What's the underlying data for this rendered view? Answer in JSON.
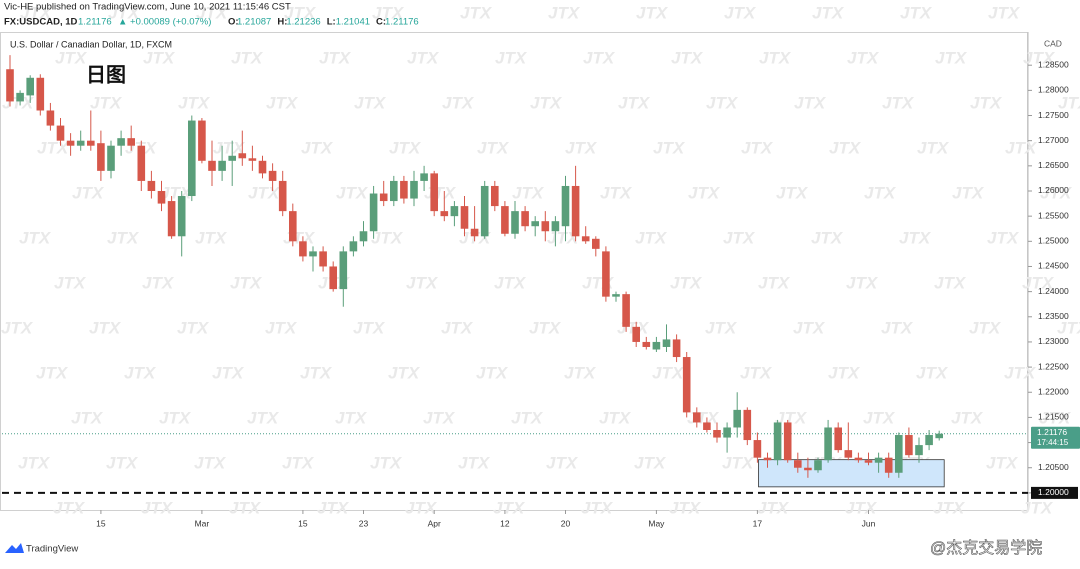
{
  "header": {
    "publisher": "Vic-HE published on TradingView.com, June 10, 2021 11:15:46 CST",
    "symbol": "FX:USDCAD, 1D",
    "price": "1.21176",
    "change": "▲ +0.00089 (+0.07%)",
    "ohlc": [
      {
        "key": "O:",
        "value": "1.21087"
      },
      {
        "key": "H:",
        "value": "1.21236"
      },
      {
        "key": "L:",
        "value": "1.21041"
      },
      {
        "key": "C:",
        "value": "1.21176"
      }
    ]
  },
  "watermark": "JTX",
  "footer": {
    "brand": "TradingView",
    "credit": "@杰克交易学院"
  },
  "chart_data": {
    "type": "candlestick",
    "title": "U.S. Dollar / Canadian Dollar, 1D, FXCM",
    "annotation": "日图",
    "currency": "CAD",
    "up_color": "#5a9e7a",
    "down_color": "#d6574a",
    "categories": [
      null,
      null,
      null,
      null,
      null,
      null,
      null,
      null,
      null,
      "15",
      null,
      null,
      null,
      null,
      null,
      null,
      null,
      null,
      null,
      "Mar",
      null,
      null,
      null,
      null,
      null,
      null,
      null,
      null,
      null,
      "15",
      null,
      null,
      null,
      null,
      null,
      "23",
      null,
      null,
      null,
      null,
      null,
      null,
      "Apr",
      null,
      null,
      null,
      null,
      null,
      null,
      "12",
      null,
      null,
      null,
      null,
      null,
      "20",
      null,
      null,
      null,
      null,
      null,
      null,
      null,
      null,
      "May",
      null,
      null,
      null,
      null,
      null,
      null,
      null,
      null,
      null,
      "17",
      null,
      null,
      null,
      null,
      null,
      null,
      null,
      null,
      null,
      null,
      "Jun",
      null,
      null,
      null,
      null,
      null,
      null,
      null
    ],
    "open": [
      1.2842,
      1.2778,
      1.279,
      1.2825,
      1.276,
      1.273,
      1.27,
      1.269,
      1.27,
      1.2695,
      1.264,
      1.269,
      1.2705,
      1.269,
      1.262,
      1.26,
      1.258,
      1.251,
      1.259,
      1.274,
      1.266,
      1.264,
      1.266,
      1.2675,
      1.2665,
      1.266,
      1.264,
      1.262,
      1.256,
      1.25,
      1.247,
      1.248,
      1.245,
      1.2405,
      1.248,
      1.25,
      1.252,
      1.2595,
      1.258,
      1.262,
      1.2585,
      1.262,
      1.2635,
      1.256,
      1.255,
      1.257,
      1.2525,
      1.251,
      1.261,
      1.257,
      1.2515,
      1.256,
      1.253,
      1.254,
      1.252,
      1.253,
      1.261,
      1.251,
      1.2505,
      1.248,
      1.239,
      1.2395,
      1.233,
      1.23,
      1.2285,
      1.229,
      1.2305,
      1.227,
      1.216,
      1.214,
      1.2125,
      1.211,
      1.213,
      1.2165,
      1.2105,
      1.207,
      1.2065,
      1.214,
      1.2065,
      1.205,
      1.2045,
      1.2065,
      1.213,
      1.2085,
      1.207,
      1.2065,
      1.206,
      1.207,
      1.204,
      1.2115,
      1.2075,
      1.2095,
      1.21087
    ],
    "high": [
      1.287,
      1.28,
      1.283,
      1.2832,
      1.2775,
      1.2745,
      1.2715,
      1.272,
      1.276,
      1.272,
      1.27,
      1.272,
      1.273,
      1.27,
      1.264,
      1.262,
      1.259,
      1.26,
      1.275,
      1.2745,
      1.27,
      1.269,
      1.27,
      1.272,
      1.269,
      1.267,
      1.2655,
      1.264,
      1.2575,
      1.251,
      1.249,
      1.249,
      1.246,
      1.249,
      1.251,
      1.254,
      1.261,
      1.262,
      1.263,
      1.263,
      1.264,
      1.265,
      1.264,
      1.26,
      1.258,
      1.259,
      1.257,
      1.262,
      1.262,
      1.258,
      1.258,
      1.257,
      1.255,
      1.256,
      1.255,
      1.263,
      1.265,
      1.253,
      1.251,
      1.249,
      1.24,
      1.24,
      1.234,
      1.231,
      1.231,
      1.2335,
      1.2315,
      1.228,
      1.217,
      1.215,
      1.214,
      1.214,
      1.22,
      1.217,
      1.212,
      1.208,
      1.2145,
      1.2145,
      1.208,
      1.207,
      1.207,
      1.2145,
      1.214,
      1.214,
      1.208,
      1.208,
      1.208,
      1.208,
      1.212,
      1.213,
      1.211,
      1.2125,
      1.21236
    ],
    "low": [
      1.2768,
      1.277,
      1.2775,
      1.275,
      1.272,
      1.269,
      1.267,
      1.268,
      1.268,
      1.262,
      1.2625,
      1.267,
      1.268,
      1.26,
      1.2585,
      1.256,
      1.2505,
      1.247,
      1.258,
      1.2655,
      1.261,
      1.262,
      1.261,
      1.265,
      1.264,
      1.2625,
      1.26,
      1.255,
      1.249,
      1.246,
      1.244,
      1.244,
      1.24,
      1.237,
      1.247,
      1.249,
      1.2505,
      1.257,
      1.257,
      1.2575,
      1.257,
      1.26,
      1.255,
      1.254,
      1.253,
      1.251,
      1.25,
      1.2505,
      1.256,
      1.251,
      1.2505,
      1.252,
      1.251,
      1.25,
      1.249,
      1.25,
      1.25,
      1.2495,
      1.247,
      1.238,
      1.238,
      1.232,
      1.229,
      1.2285,
      1.228,
      1.228,
      1.226,
      1.215,
      1.213,
      1.212,
      1.21,
      1.208,
      1.211,
      1.2095,
      1.206,
      1.205,
      1.2055,
      1.206,
      1.204,
      1.203,
      1.204,
      1.206,
      1.208,
      1.2065,
      1.206,
      1.2055,
      1.204,
      1.203,
      1.203,
      1.207,
      1.206,
      1.2085,
      1.21041
    ],
    "close": [
      1.2778,
      1.2795,
      1.2825,
      1.276,
      1.273,
      1.27,
      1.269,
      1.27,
      1.269,
      1.264,
      1.269,
      1.2705,
      1.269,
      1.262,
      1.26,
      1.2575,
      1.251,
      1.259,
      1.274,
      1.266,
      1.264,
      1.266,
      1.267,
      1.2665,
      1.266,
      1.2635,
      1.262,
      1.256,
      1.25,
      1.247,
      1.248,
      1.245,
      1.2405,
      1.248,
      1.25,
      1.252,
      1.2595,
      1.258,
      1.262,
      1.2585,
      1.262,
      1.2635,
      1.256,
      1.255,
      1.257,
      1.2525,
      1.251,
      1.261,
      1.257,
      1.2515,
      1.256,
      1.253,
      1.254,
      1.252,
      1.254,
      1.261,
      1.251,
      1.25,
      1.2485,
      1.239,
      1.2395,
      1.233,
      1.23,
      1.229,
      1.23,
      1.2305,
      1.227,
      1.216,
      1.214,
      1.2125,
      1.211,
      1.213,
      1.2165,
      1.2105,
      1.207,
      1.2065,
      1.214,
      1.2065,
      1.205,
      1.2045,
      1.2065,
      1.213,
      1.2085,
      1.207,
      1.2065,
      1.206,
      1.207,
      1.204,
      1.2115,
      1.2075,
      1.2095,
      1.2115,
      1.21176
    ],
    "ylim": [
      1.1966,
      1.2914
    ],
    "yticks": [
      {
        "value": 1.2,
        "label": "1.20000"
      },
      {
        "value": 1.205,
        "label": "1.20500"
      },
      {
        "value": 1.21,
        "label": "1.21000"
      },
      {
        "value": 1.215,
        "label": "1.21500"
      },
      {
        "value": 1.22,
        "label": "1.22000"
      },
      {
        "value": 1.225,
        "label": "1.22500"
      },
      {
        "value": 1.23,
        "label": "1.23000"
      },
      {
        "value": 1.235,
        "label": "1.23500"
      },
      {
        "value": 1.24,
        "label": "1.24000"
      },
      {
        "value": 1.245,
        "label": "1.24500"
      },
      {
        "value": 1.25,
        "label": "1.25000"
      },
      {
        "value": 1.255,
        "label": "1.25500"
      },
      {
        "value": 1.26,
        "label": "1.26000"
      },
      {
        "value": 1.265,
        "label": "1.26500"
      },
      {
        "value": 1.27,
        "label": "1.27000"
      },
      {
        "value": 1.275,
        "label": "1.27500"
      },
      {
        "value": 1.28,
        "label": "1.28000"
      },
      {
        "value": 1.285,
        "label": "1.28500"
      }
    ],
    "last_price": {
      "value": 1.21176,
      "label": "1.21176"
    },
    "countdown": "17:44:15",
    "hline": {
      "value": 1.2,
      "color": "#111111"
    },
    "zone": {
      "low": 1.2012,
      "high": 1.2066,
      "start": 75,
      "end": 92,
      "color": "#cfe6fb"
    }
  }
}
